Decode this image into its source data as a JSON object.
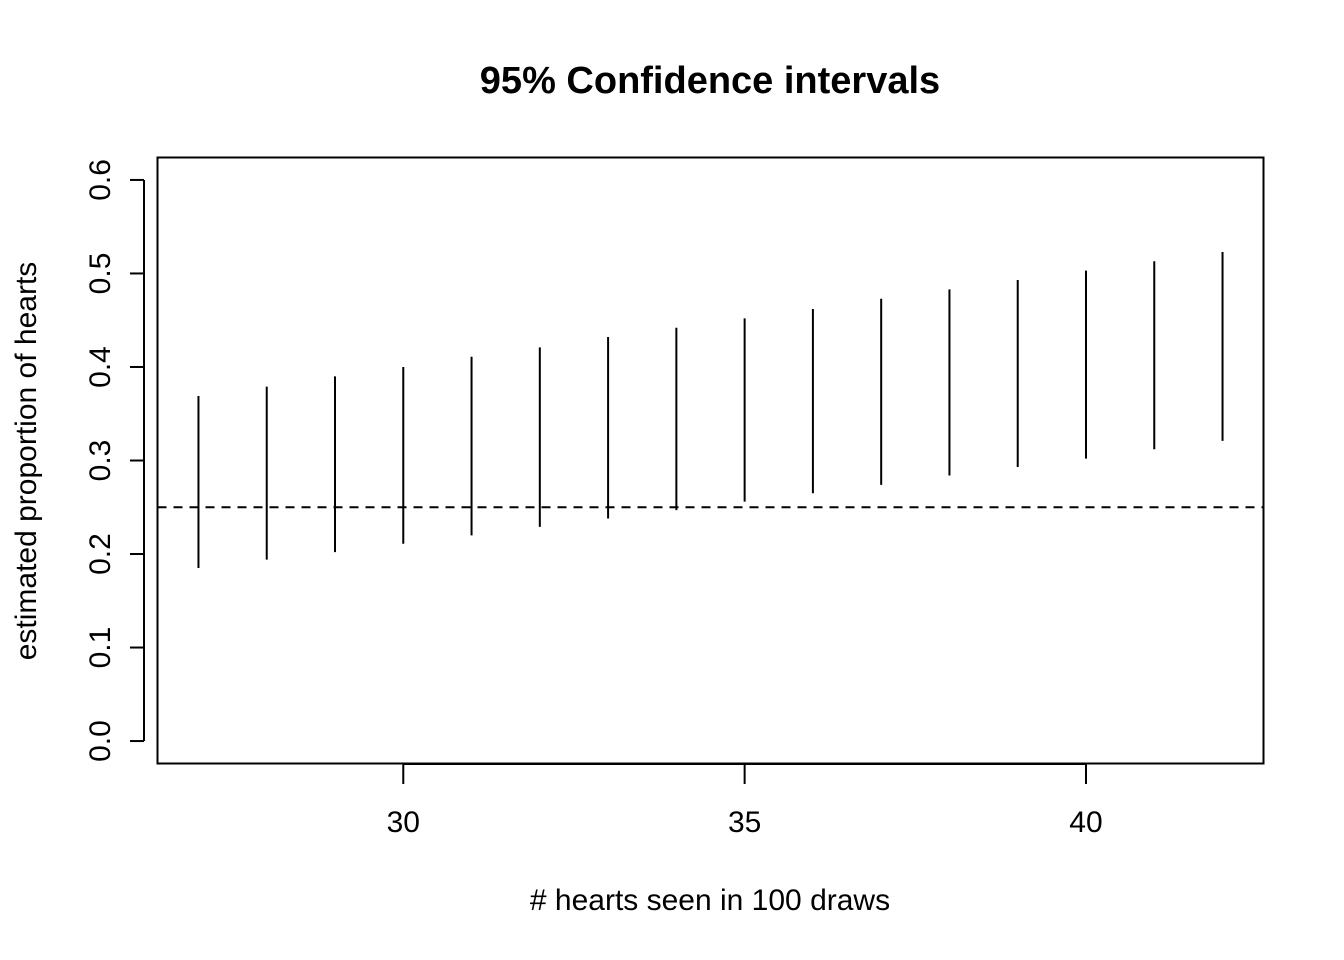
{
  "chart_data": {
    "type": "errorbar",
    "title": "95% Confidence intervals",
    "xlabel": "# hearts seen in 100 draws",
    "ylabel": "estimated proportion of hearts",
    "xlim": [
      26.4,
      42.6
    ],
    "ylim": [
      -0.024,
      0.624
    ],
    "x_ticks": [
      30,
      35,
      40
    ],
    "x_tick_labels": [
      "30",
      "35",
      "40"
    ],
    "y_ticks": [
      0.0,
      0.1,
      0.2,
      0.3,
      0.4,
      0.5,
      0.6
    ],
    "y_tick_labels": [
      "0.0",
      "0.1",
      "0.2",
      "0.3",
      "0.4",
      "0.5",
      "0.6"
    ],
    "intervals": [
      {
        "x": 27,
        "lower": 0.185,
        "upper": 0.369
      },
      {
        "x": 28,
        "lower": 0.194,
        "upper": 0.379
      },
      {
        "x": 29,
        "lower": 0.202,
        "upper": 0.39
      },
      {
        "x": 30,
        "lower": 0.211,
        "upper": 0.4
      },
      {
        "x": 31,
        "lower": 0.22,
        "upper": 0.411
      },
      {
        "x": 32,
        "lower": 0.229,
        "upper": 0.421
      },
      {
        "x": 33,
        "lower": 0.238,
        "upper": 0.432
      },
      {
        "x": 34,
        "lower": 0.247,
        "upper": 0.442
      },
      {
        "x": 35,
        "lower": 0.256,
        "upper": 0.452
      },
      {
        "x": 36,
        "lower": 0.265,
        "upper": 0.462
      },
      {
        "x": 37,
        "lower": 0.274,
        "upper": 0.473
      },
      {
        "x": 38,
        "lower": 0.284,
        "upper": 0.483
      },
      {
        "x": 39,
        "lower": 0.293,
        "upper": 0.493
      },
      {
        "x": 40,
        "lower": 0.302,
        "upper": 0.503
      },
      {
        "x": 41,
        "lower": 0.312,
        "upper": 0.513
      },
      {
        "x": 42,
        "lower": 0.321,
        "upper": 0.523
      }
    ],
    "reference_line": {
      "y": 0.25,
      "style": "dashed"
    },
    "grid": false,
    "legend": false,
    "colors": {
      "line": "#000000",
      "background": "#ffffff"
    }
  }
}
